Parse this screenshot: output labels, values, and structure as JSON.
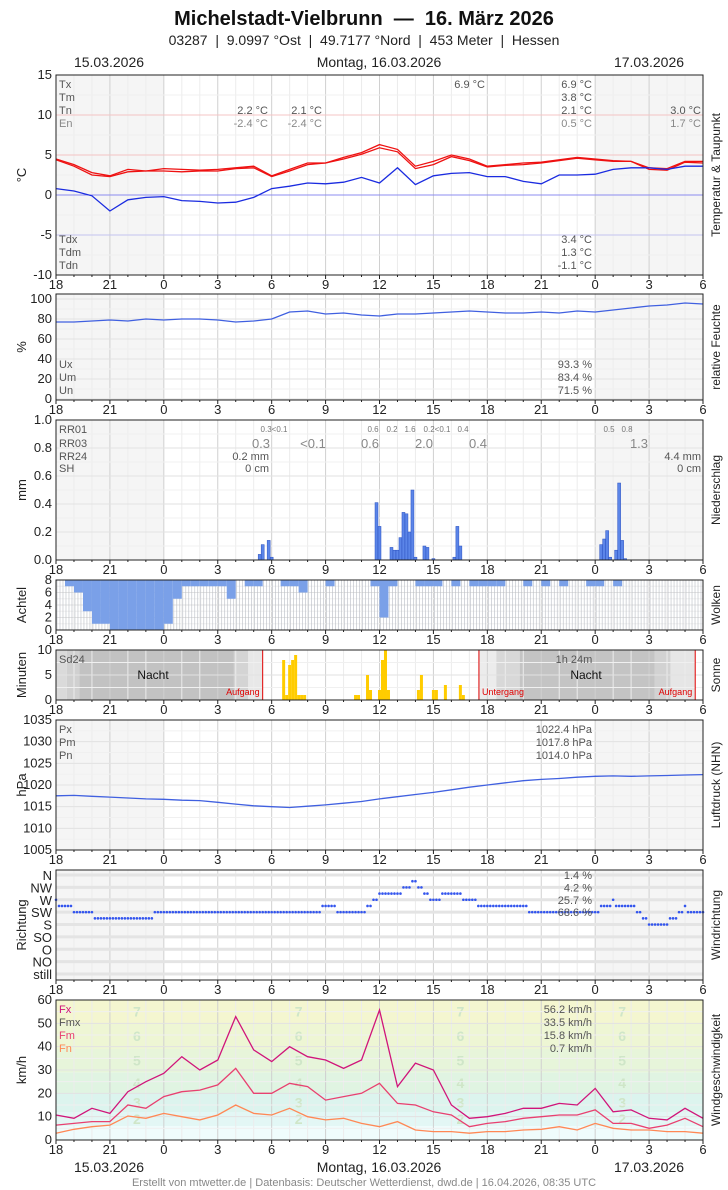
{
  "header": {
    "title": "Michelstadt-Vielbrunn  —  16. März 2026",
    "subtitle": "03287  |  9.0997 °Ost  |  49.7177 °Nord  |  453 Meter  |  Hessen",
    "date_left": "15.03.2026",
    "date_center": "Montag, 16.03.2026",
    "date_right": "17.03.2026"
  },
  "footer": "Erstellt von mtwetter.de | Datenbasis: Deutscher Wetterdienst, dwd.de | 16.04.2026, 08:35 UTC",
  "x_ticks": [
    "18",
    "21",
    "0",
    "3",
    "6",
    "9",
    "12",
    "15",
    "18",
    "21",
    "0",
    "3",
    "6"
  ],
  "x": [
    "15.03. 18:00",
    "15.03. 19:00",
    "15.03. 20:00",
    "15.03. 21:00",
    "15.03. 22:00",
    "15.03. 23:00",
    "16.03. 00:00",
    "16.03. 01:00",
    "16.03. 02:00",
    "16.03. 03:00",
    "16.03. 04:00",
    "16.03. 05:00",
    "16.03. 06:00",
    "16.03. 07:00",
    "16.03. 08:00",
    "16.03. 09:00",
    "16.03. 10:00",
    "16.03. 11:00",
    "16.03. 12:00",
    "16.03. 13:00",
    "16.03. 14:00",
    "16.03. 15:00",
    "16.03. 16:00",
    "16.03. 17:00",
    "16.03. 18:00",
    "16.03. 19:00",
    "16.03. 20:00",
    "16.03. 21:00",
    "16.03. 22:00",
    "16.03. 23:00",
    "17.03. 00:00",
    "17.03. 01:00",
    "17.03. 02:00",
    "17.03. 03:00",
    "17.03. 04:00",
    "17.03. 05:00",
    "17.03. 06:00"
  ],
  "chart_data": [
    {
      "type": "line",
      "title": "Temperatur & Taupunkt",
      "ylabel": "°C",
      "ylim": [
        -10,
        15
      ],
      "yticks": [
        "15",
        "10",
        "5",
        "0",
        "-5",
        "-10"
      ],
      "series": [
        {
          "color": "#ee1111",
          "values": [
            4.5,
            3.8,
            2.8,
            2.4,
            3.2,
            3.0,
            3.3,
            3.2,
            3.1,
            3.2,
            3.4,
            3.6,
            2.4,
            3.2,
            4.0,
            4.0,
            4.7,
            5.3,
            6.3,
            5.7,
            3.6,
            4.2,
            5.0,
            4.5,
            3.6,
            3.8,
            4.0,
            4.1,
            4.4,
            4.7,
            4.5,
            4.3,
            4.2,
            3.4,
            3.3,
            4.2,
            4.2
          ]
        },
        {
          "color": "#ee1111",
          "values": [
            4.4,
            3.6,
            2.5,
            2.3,
            2.9,
            3.0,
            3.0,
            2.9,
            3.0,
            3.0,
            3.3,
            3.4,
            2.3,
            3.0,
            3.8,
            4.0,
            4.5,
            5.1,
            5.9,
            5.4,
            3.3,
            3.8,
            4.8,
            4.3,
            3.5,
            3.7,
            3.8,
            4.0,
            4.3,
            4.6,
            4.4,
            4.2,
            4.2,
            3.2,
            3.1,
            4.1,
            4.0
          ]
        },
        {
          "color": "#1a2be0",
          "values": [
            0.8,
            0.5,
            -0.1,
            -2.0,
            -0.6,
            -0.3,
            -0.2,
            -0.7,
            -0.8,
            -1.0,
            -0.9,
            -0.3,
            0.8,
            1.1,
            1.5,
            1.4,
            1.6,
            2.2,
            1.5,
            3.4,
            1.3,
            2.4,
            2.7,
            2.8,
            2.3,
            2.3,
            1.7,
            1.4,
            2.5,
            2.5,
            2.6,
            3.2,
            3.4,
            3.4,
            3.2,
            3.6,
            3.6
          ]
        }
      ],
      "stats": [
        {
          "label": "Tx",
          "values": [
            "6.9 °C",
            "6.9 °C"
          ]
        },
        {
          "label": "Tm",
          "values": [
            "3.8 °C"
          ]
        },
        {
          "label": "Tn",
          "values": [
            "2.2 °C",
            "2.1 °C",
            "2.1 °C",
            "3.0 °C"
          ]
        },
        {
          "label": "En",
          "values": [
            "-2.4 °C",
            "-2.4 °C",
            "0.5 °C",
            "1.7 °C"
          ]
        },
        {
          "label": "Tdx",
          "values": [
            "3.4 °C"
          ]
        },
        {
          "label": "Tdm",
          "values": [
            "1.3 °C"
          ]
        },
        {
          "label": "Tdn",
          "values": [
            "-1.1 °C"
          ]
        }
      ]
    },
    {
      "type": "line",
      "title": "relative Feuchte",
      "ylabel": "%",
      "ylim": [
        0,
        100
      ],
      "yticks": [
        "100",
        "80",
        "60",
        "40",
        "20",
        "0"
      ],
      "series": [
        {
          "color": "#4060e0",
          "values": [
            77,
            77,
            78,
            79,
            78,
            80,
            79,
            80,
            80,
            79,
            77,
            78,
            80,
            87,
            88,
            85,
            86,
            84,
            83,
            85,
            85,
            86,
            87,
            88,
            87,
            86,
            86,
            87,
            86,
            88,
            87,
            89,
            91,
            93,
            94,
            96,
            95
          ]
        }
      ],
      "stats": [
        {
          "label": "Ux",
          "values": [
            "93.3 %"
          ]
        },
        {
          "label": "Um",
          "values": [
            "83.4 %"
          ]
        },
        {
          "label": "Un",
          "values": [
            "71.5 %"
          ]
        }
      ]
    },
    {
      "type": "bar",
      "title": "Niederschlag",
      "ylabel": "mm",
      "ylim": [
        0,
        1
      ],
      "yticks": [
        "1.0",
        "0.8",
        "0.6",
        "0.4",
        "0.2",
        "0.0"
      ],
      "color": "#5b85e8",
      "bars": [
        [
          "16.03. 05:20",
          0.04
        ],
        [
          "16.03. 05:30",
          0.11
        ],
        [
          "16.03. 05:50",
          0.14
        ],
        [
          "16.03. 06:00",
          0.02
        ],
        [
          "16.03. 11:50",
          0.41
        ],
        [
          "16.03. 12:00",
          0.24
        ],
        [
          "16.03. 12:40",
          0.09
        ],
        [
          "16.03. 12:50",
          0.07
        ],
        [
          "16.03. 13:00",
          0.07
        ],
        [
          "16.03. 13:10",
          0.16
        ],
        [
          "16.03. 13:20",
          0.34
        ],
        [
          "16.03. 13:30",
          0.33
        ],
        [
          "16.03. 13:40",
          0.2
        ],
        [
          "16.03. 13:50",
          0.5
        ],
        [
          "16.03. 14:00",
          0.02
        ],
        [
          "16.03. 14:30",
          0.1
        ],
        [
          "16.03. 14:40",
          0.09
        ],
        [
          "16.03. 15:00",
          0.01
        ],
        [
          "16.03. 16:10",
          0.02
        ],
        [
          "16.03. 16:20",
          0.24
        ],
        [
          "16.03. 16:30",
          0.1
        ],
        [
          "17.03. 00:20",
          0.11
        ],
        [
          "17.03. 00:30",
          0.15
        ],
        [
          "17.03. 00:40",
          0.21
        ],
        [
          "17.03. 00:50",
          0.02
        ],
        [
          "17.03. 01:10",
          0.07
        ],
        [
          "17.03. 01:20",
          0.55
        ],
        [
          "17.03. 01:30",
          0.14
        ],
        [
          "17.03. 01:40",
          0.01
        ]
      ],
      "stats": [
        {
          "label": "RR01",
          "values": [
            "0.3<0.1",
            "0.6",
            "0.2",
            "1.6",
            "0.2<0.1",
            "0.4",
            "0.5",
            "0.8"
          ]
        },
        {
          "label": "RR03",
          "values": [
            "0.3",
            "<0.1",
            "0.6",
            "2.0",
            "0.4",
            "1.3"
          ]
        },
        {
          "label": "RR24",
          "values": [
            "0.2 mm",
            "4.4 mm"
          ]
        },
        {
          "label": "SH",
          "values": [
            "0 cm",
            "0 cm"
          ]
        }
      ]
    },
    {
      "type": "bar",
      "title": "Wolken",
      "ylabel": "Achtel",
      "ylim": [
        0,
        8
      ],
      "yticks": [
        "8",
        "6",
        "4",
        "2",
        "0"
      ],
      "x_from": "15.03. 18:00",
      "x_step_minutes": 30,
      "octas": [
        8,
        7,
        6,
        3,
        1,
        1,
        0,
        0,
        0,
        0,
        0,
        0,
        1,
        5,
        7,
        7,
        7,
        7,
        7,
        5,
        8,
        7,
        7,
        8,
        8,
        7,
        7,
        6,
        8,
        8,
        7,
        8,
        8,
        8,
        8,
        7,
        2,
        7,
        8,
        8,
        7,
        7,
        7,
        8,
        7,
        8,
        7,
        7,
        7,
        7,
        8,
        8,
        7,
        8,
        7,
        8,
        7,
        8,
        8,
        7,
        7,
        8,
        7,
        8,
        8,
        8,
        8,
        8,
        8,
        8,
        8,
        8
      ],
      "clear_color": "#7aa0e8",
      "cloud_color": "#dde1e8"
    },
    {
      "type": "bar",
      "title": "Sonne",
      "ylabel": "Minuten",
      "ylim": [
        0,
        10
      ],
      "yticks": [
        "10",
        "5",
        "0"
      ],
      "color": "#ffcc00",
      "bars": [
        [
          "16.03. 06:40",
          8
        ],
        [
          "16.03. 06:50",
          1
        ],
        [
          "16.03. 07:00",
          7
        ],
        [
          "16.03. 07:10",
          8
        ],
        [
          "16.03. 07:20",
          9
        ],
        [
          "16.03. 07:30",
          1
        ],
        [
          "16.03. 07:40",
          1
        ],
        [
          "16.03. 07:50",
          1
        ],
        [
          "16.03. 10:40",
          1
        ],
        [
          "16.03. 10:50",
          1
        ],
        [
          "16.03. 11:20",
          5
        ],
        [
          "16.03. 11:30",
          2
        ],
        [
          "16.03. 12:00",
          2
        ],
        [
          "16.03. 12:10",
          8
        ],
        [
          "16.03. 12:20",
          10
        ],
        [
          "16.03. 12:30",
          2
        ],
        [
          "16.03. 14:10",
          2
        ],
        [
          "16.03. 14:20",
          5
        ],
        [
          "16.03. 15:00",
          2
        ],
        [
          "16.03. 15:10",
          2
        ],
        [
          "16.03. 15:40",
          3
        ],
        [
          "16.03. 16:30",
          3
        ],
        [
          "16.03. 16:40",
          1
        ]
      ],
      "sun_events": [
        {
          "label": "Aufgang",
          "time": "16.03. 05:30"
        },
        {
          "label": "Untergang",
          "time": "16.03. 17:32"
        },
        {
          "label": "Aufgang",
          "time": "17.03. 05:34"
        }
      ],
      "night_label": "Nacht",
      "stats": [
        {
          "label": "Sd24",
          "values": [
            "1h 24m"
          ]
        }
      ]
    },
    {
      "type": "line",
      "title": "Luftdruck (NHN)",
      "ylabel": "hPa",
      "ylim": [
        1005,
        1035
      ],
      "yticks": [
        "1035",
        "1030",
        "1025",
        "1020",
        "1015",
        "1010",
        "1005"
      ],
      "series": [
        {
          "color": "#4060e0",
          "values": [
            1017.5,
            1017.6,
            1017.4,
            1017.2,
            1017.0,
            1016.8,
            1016.7,
            1016.5,
            1016.4,
            1016.0,
            1015.6,
            1015.2,
            1015.0,
            1014.8,
            1015.1,
            1015.4,
            1015.8,
            1016.2,
            1016.8,
            1017.3,
            1017.8,
            1018.3,
            1018.9,
            1019.5,
            1020.0,
            1020.5,
            1021.0,
            1021.3,
            1021.5,
            1021.8,
            1022.0,
            1022.1,
            1022.0,
            1022.1,
            1022.2,
            1022.3,
            1022.4
          ]
        }
      ],
      "stats": [
        {
          "label": "Px",
          "values": [
            "1022.4 hPa"
          ]
        },
        {
          "label": "Pm",
          "values": [
            "1017.8 hPa"
          ]
        },
        {
          "label": "Pn",
          "values": [
            "1014.0 hPa"
          ]
        }
      ]
    },
    {
      "type": "scatter",
      "title": "Windrichtung",
      "ylabel": "Richtung",
      "categories": [
        "N",
        "NW",
        "W",
        "SW",
        "S",
        "SO",
        "O",
        "NO",
        "still"
      ],
      "color": "#3355ee",
      "direction_index": [
        2.2,
        2.8,
        3.2,
        3.5,
        3.3,
        3.5,
        3.0,
        3.2,
        3.0,
        3.0,
        3.0,
        3.0,
        3.0,
        3.0,
        2.9,
        2.7,
        2.8,
        3.0,
        1.7,
        1.4,
        0.6,
        2.1,
        1.4,
        2.0,
        2.5,
        2.5,
        2.7,
        2.9,
        3.0,
        3.2,
        3.0,
        2.2,
        2.5,
        3.9,
        3.9,
        2.7,
        3.0
      ],
      "percentages": [
        "1.4 %",
        "4.2 %",
        "25.7 %",
        "68.6 %"
      ]
    },
    {
      "type": "line",
      "title": "Windgeschwindigkeit",
      "ylabel": "km/h",
      "ylim": [
        0,
        60
      ],
      "yticks": [
        "60",
        "50",
        "40",
        "30",
        "20",
        "10",
        "0"
      ],
      "beaufort": [
        {
          "bft": "2",
          "min": 6,
          "max": 12,
          "color": "#e3f7f5"
        },
        {
          "bft": "3",
          "min": 12,
          "max": 20,
          "color": "#dcf4ee"
        },
        {
          "bft": "4",
          "min": 20,
          "max": 29,
          "color": "#e0f4e2"
        },
        {
          "bft": "5",
          "min": 29,
          "max": 39,
          "color": "#e7f5da"
        },
        {
          "bft": "6",
          "min": 39,
          "max": 50,
          "color": "#eef6d4"
        },
        {
          "bft": "7",
          "min": 50,
          "max": 60,
          "color": "#f4f6d0"
        }
      ],
      "calm_color": "#effcfc",
      "series": [
        {
          "name": "Fx",
          "color": "#d0157a",
          "values": [
            10.7,
            9.3,
            13.6,
            11.4,
            20.7,
            25,
            28.6,
            35.7,
            30,
            34.3,
            52.9,
            38.6,
            33.6,
            40,
            35.7,
            34.3,
            30.7,
            34.3,
            55.7,
            22.9,
            32.9,
            30,
            15,
            9.3,
            10,
            11.4,
            13.6,
            13.6,
            15.7,
            15,
            22.1,
            12.1,
            12.9,
            9.3,
            8.6,
            13.6,
            9.3
          ]
        },
        {
          "name": "Fm",
          "color": "#e84070",
          "values": [
            6.4,
            7.1,
            7.9,
            7.9,
            15,
            13.6,
            18.6,
            20.7,
            21.4,
            23.6,
            30.7,
            20,
            20,
            24.3,
            22.9,
            17.1,
            18.6,
            20,
            24.3,
            15.7,
            15,
            12.1,
            10.7,
            5.7,
            7.1,
            7.9,
            9.3,
            10,
            10.7,
            10.7,
            12.9,
            7.1,
            7.1,
            5,
            6.4,
            9.3,
            5.7
          ]
        },
        {
          "name": "Fn",
          "color": "#ff8855",
          "values": [
            2.9,
            4.6,
            5.7,
            6.4,
            10.3,
            9.3,
            11.4,
            10,
            8.6,
            10.7,
            15,
            11.4,
            10.7,
            13.6,
            10,
            8.6,
            9.3,
            7.1,
            5.7,
            7.9,
            4.3,
            3.6,
            3.6,
            2.9,
            3.6,
            3.6,
            4.3,
            4.6,
            5.7,
            4.3,
            7.1,
            5,
            4.3,
            4.3,
            3.6,
            3.6,
            2.9
          ]
        }
      ],
      "stats": [
        {
          "label": "Fx",
          "color": "#d0157a",
          "values": [
            "56.2 km/h"
          ]
        },
        {
          "label": "Fmx",
          "color": "#555555",
          "values": [
            "33.5 km/h"
          ]
        },
        {
          "label": "Fm",
          "color": "#e84070",
          "values": [
            "15.8 km/h"
          ]
        },
        {
          "label": "Fn",
          "color": "#ff8855",
          "values": [
            "0.7 km/h"
          ]
        }
      ]
    }
  ]
}
